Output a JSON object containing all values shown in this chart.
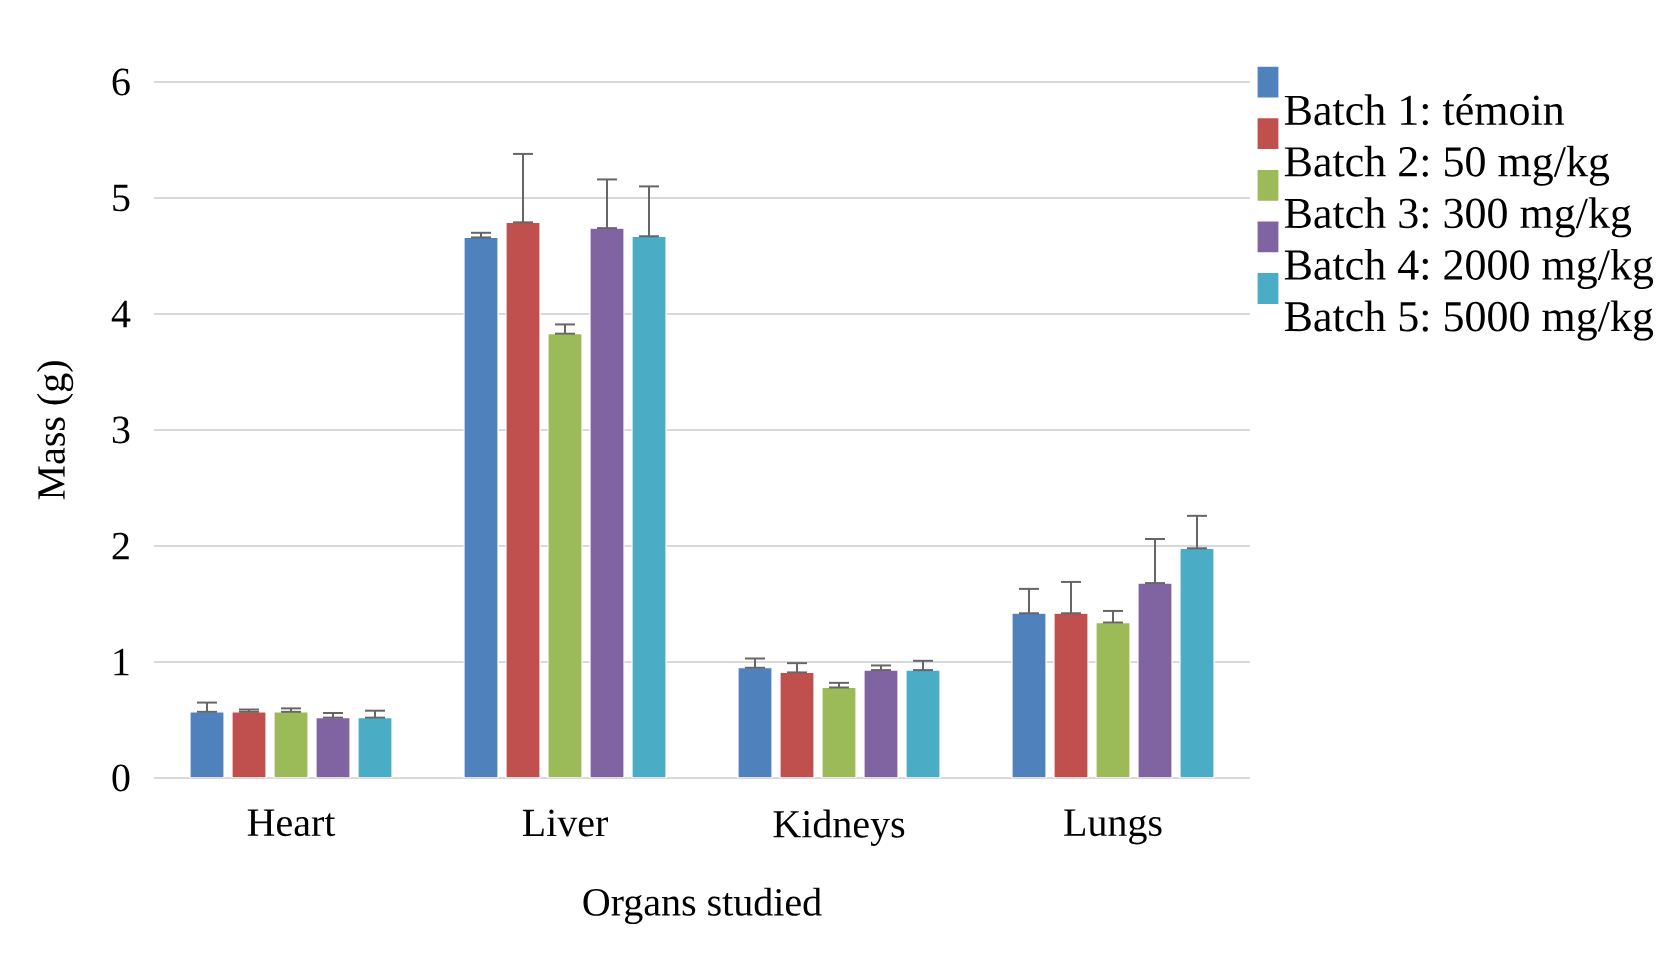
{
  "chart_data": {
    "type": "bar",
    "xlabel": "Organs studied",
    "ylabel": "Mass (g)",
    "categories": [
      "Heart",
      "Liver",
      "Kidneys",
      "Lungs"
    ],
    "series": [
      {
        "name": "Batch 1: témoin",
        "color": "#4f81bd",
        "values": [
          0.57,
          4.66,
          0.95,
          1.42
        ],
        "errors": [
          [
            0.57,
            0.65
          ],
          [
            4.66,
            4.7
          ],
          [
            0.95,
            1.03
          ],
          [
            1.42,
            1.63
          ]
        ]
      },
      {
        "name": "Batch 2: 50 mg/kg",
        "color": "#c0504d",
        "values": [
          0.57,
          4.79,
          0.91,
          1.42
        ],
        "errors": [
          [
            0.57,
            0.59
          ],
          [
            4.79,
            5.38
          ],
          [
            0.91,
            0.99
          ],
          [
            1.42,
            1.69
          ]
        ]
      },
      {
        "name": "Batch 3: 300 mg/kg",
        "color": "#9bbb59",
        "values": [
          0.57,
          3.83,
          0.78,
          1.34
        ],
        "errors": [
          [
            0.57,
            0.6
          ],
          [
            3.83,
            3.91
          ],
          [
            0.78,
            0.82
          ],
          [
            1.34,
            1.44
          ]
        ]
      },
      {
        "name": "Batch 4: 2000 mg/kg",
        "color": "#8064a2",
        "values": [
          0.52,
          4.74,
          0.93,
          1.68
        ],
        "errors": [
          [
            0.52,
            0.56
          ],
          [
            4.74,
            5.16
          ],
          [
            0.93,
            0.97
          ],
          [
            1.68,
            2.06
          ]
        ]
      },
      {
        "name": "Batch 5: 5000 mg/kg",
        "color": "#4bacc6",
        "values": [
          0.52,
          4.67,
          0.93,
          1.98
        ],
        "errors": [
          [
            0.52,
            0.58
          ],
          [
            4.67,
            5.1
          ],
          [
            0.93,
            1.01
          ],
          [
            1.98,
            2.26
          ]
        ]
      }
    ],
    "ylim": [
      0,
      6
    ],
    "yticks": [
      0,
      1,
      2,
      3,
      4,
      5,
      6
    ],
    "grid": "y",
    "legend": "right"
  }
}
